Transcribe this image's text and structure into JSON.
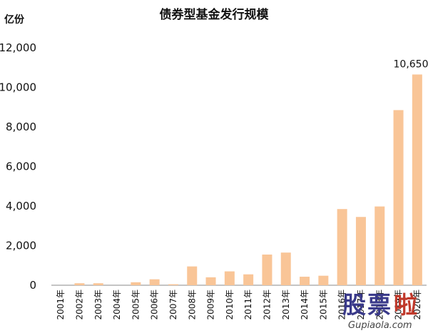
{
  "chart_data": {
    "type": "bar",
    "title": "债券型基金发行规模",
    "unit_label": "亿份",
    "categories": [
      "2001年",
      "2002年",
      "2003年",
      "2004年",
      "2005年",
      "2006年",
      "2007年",
      "2008年",
      "2009年",
      "2010年",
      "2011年",
      "2012年",
      "2013年",
      "2014年",
      "2015年",
      "2016年",
      "2017年",
      "2018年",
      "2019年",
      "2020年"
    ],
    "values": [
      0,
      100,
      100,
      0,
      150,
      300,
      50,
      950,
      400,
      700,
      550,
      1550,
      1650,
      430,
      480,
      3850,
      3450,
      3980,
      8850,
      10650
    ],
    "ylim": [
      0,
      12000
    ],
    "yticks": [
      "0",
      "2,000",
      "4,000",
      "6,000",
      "8,000",
      "10,000",
      "12,000"
    ],
    "ytick_values": [
      0,
      2000,
      4000,
      6000,
      8000,
      10000,
      12000
    ],
    "data_labels": [
      {
        "index": 19,
        "text": "10,650"
      }
    ],
    "bar_color": "#f9c597",
    "grid": false,
    "legend": "none"
  },
  "watermark": {
    "chinese": [
      "股",
      "票",
      "啦"
    ],
    "url": "Gupiaola.com",
    "colors": [
      "#3a3a8a",
      "#c0392b"
    ]
  }
}
